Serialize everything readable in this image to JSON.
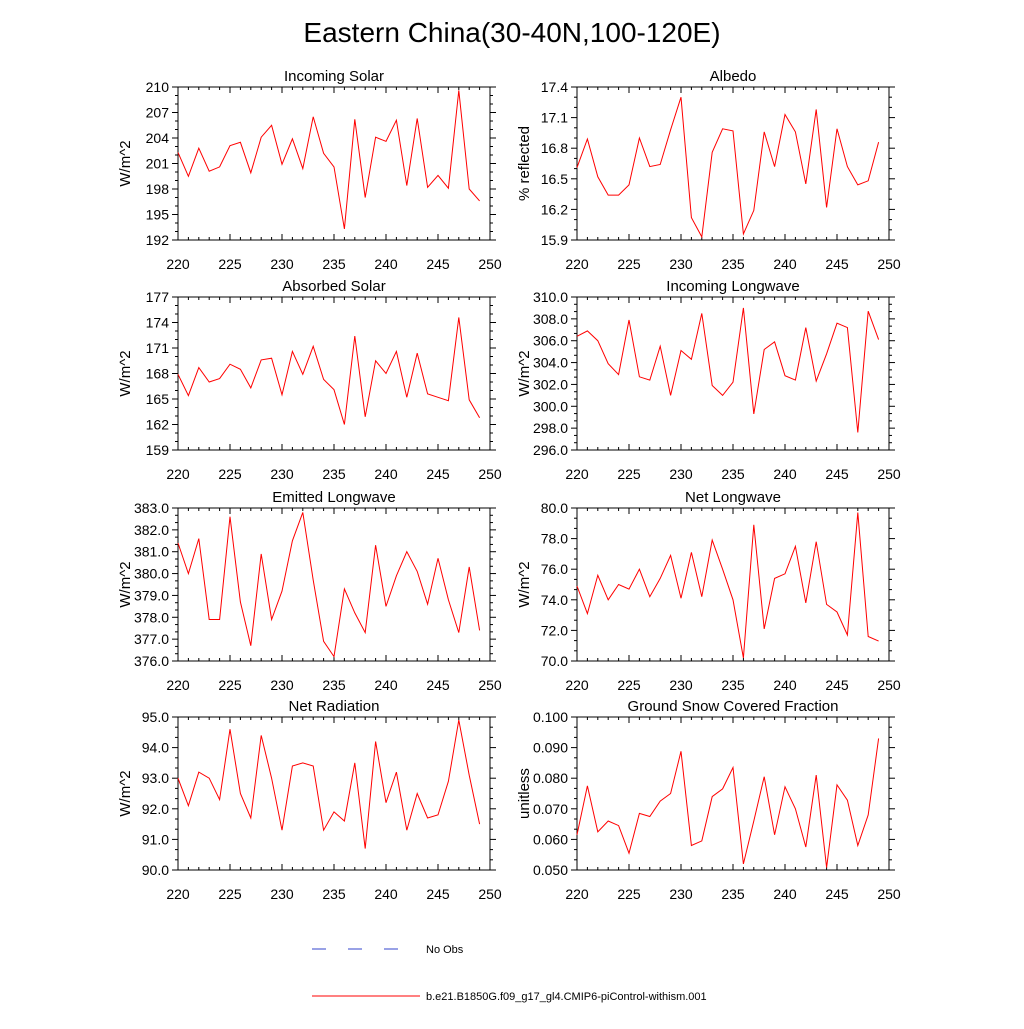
{
  "title": "Eastern China(30-40N,100-120E)",
  "legend": {
    "obs_label": "No Obs",
    "obs_color": "#3344cc",
    "model_label": "b.e21.B1850G.f09_g17_gl4.CMIP6-piControl-withism.001",
    "model_color": "#ff0000"
  },
  "chart_data": [
    {
      "type": "line",
      "title": "Incoming Solar",
      "ylabel": "W/m^2",
      "xlim": [
        220,
        250
      ],
      "ylim": [
        192,
        210
      ],
      "xticks": [
        220,
        225,
        230,
        235,
        240,
        245,
        250
      ],
      "yticks": [
        "192",
        "195",
        "198",
        "201",
        "204",
        "207",
        "210"
      ],
      "x": [
        220,
        221,
        222,
        223,
        224,
        225,
        226,
        227,
        228,
        229,
        230,
        231,
        232,
        233,
        234,
        235,
        236,
        237,
        238,
        239,
        240,
        241,
        242,
        243,
        244,
        245,
        246,
        247,
        248,
        249
      ],
      "series": [
        {
          "color": "#ff0000",
          "values": [
            202.3,
            199.5,
            202.8,
            200.1,
            200.6,
            203.1,
            203.5,
            199.9,
            204.1,
            205.5,
            200.9,
            203.9,
            200.4,
            206.5,
            202.2,
            200.6,
            193.3,
            206.2,
            197.0,
            204.1,
            203.6,
            206.1,
            198.4,
            206.3,
            198.2,
            199.6,
            198.1,
            209.6,
            198.0,
            196.6
          ]
        }
      ]
    },
    {
      "type": "line",
      "title": "Albedo",
      "ylabel": "% reflected",
      "xlim": [
        220,
        250
      ],
      "ylim": [
        15.9,
        17.4
      ],
      "xticks": [
        220,
        225,
        230,
        235,
        240,
        245,
        250
      ],
      "yticks": [
        "15.9",
        "16.2",
        "16.5",
        "16.8",
        "17.1",
        "17.4"
      ],
      "x": [
        220,
        221,
        222,
        223,
        224,
        225,
        226,
        227,
        228,
        229,
        230,
        231,
        232,
        233,
        234,
        235,
        236,
        237,
        238,
        239,
        240,
        241,
        242,
        243,
        244,
        245,
        246,
        247,
        248,
        249
      ],
      "series": [
        {
          "color": "#ff0000",
          "values": [
            16.61,
            16.89,
            16.52,
            16.34,
            16.34,
            16.44,
            16.9,
            16.62,
            16.64,
            16.98,
            17.3,
            16.12,
            15.93,
            16.76,
            16.99,
            16.97,
            15.96,
            16.19,
            16.96,
            16.62,
            17.13,
            16.96,
            16.45,
            17.18,
            16.22,
            16.99,
            16.62,
            16.44,
            16.48,
            16.86
          ]
        }
      ]
    },
    {
      "type": "line",
      "title": "Absorbed Solar",
      "ylabel": "W/m^2",
      "xlim": [
        220,
        250
      ],
      "ylim": [
        159,
        177
      ],
      "xticks": [
        220,
        225,
        230,
        235,
        240,
        245,
        250
      ],
      "yticks": [
        "159",
        "162",
        "165",
        "168",
        "171",
        "174",
        "177"
      ],
      "x": [
        220,
        221,
        222,
        223,
        224,
        225,
        226,
        227,
        228,
        229,
        230,
        231,
        232,
        233,
        234,
        235,
        236,
        237,
        238,
        239,
        240,
        241,
        242,
        243,
        244,
        245,
        246,
        247,
        248,
        249
      ],
      "series": [
        {
          "color": "#ff0000",
          "values": [
            167.9,
            165.4,
            168.7,
            167.0,
            167.4,
            169.1,
            168.5,
            166.3,
            169.6,
            169.8,
            165.5,
            170.6,
            167.9,
            171.2,
            167.3,
            166.1,
            162.0,
            172.4,
            162.9,
            169.5,
            168.0,
            170.6,
            165.2,
            170.4,
            165.6,
            165.2,
            164.8,
            174.6,
            164.9,
            162.8
          ]
        }
      ]
    },
    {
      "type": "line",
      "title": "Incoming Longwave",
      "ylabel": "W/m^2",
      "xlim": [
        220,
        250
      ],
      "ylim": [
        296.0,
        310.0
      ],
      "xticks": [
        220,
        225,
        230,
        235,
        240,
        245,
        250
      ],
      "yticks": [
        "296.0",
        "298.0",
        "300.0",
        "302.0",
        "304.0",
        "306.0",
        "308.0",
        "310.0"
      ],
      "x": [
        220,
        221,
        222,
        223,
        224,
        225,
        226,
        227,
        228,
        229,
        230,
        231,
        232,
        233,
        234,
        235,
        236,
        237,
        238,
        239,
        240,
        241,
        242,
        243,
        244,
        245,
        246,
        247,
        248,
        249
      ],
      "series": [
        {
          "color": "#ff0000",
          "values": [
            306.4,
            306.9,
            306.0,
            303.9,
            302.9,
            307.9,
            302.7,
            302.4,
            305.5,
            301.0,
            305.1,
            304.3,
            308.5,
            301.9,
            301.0,
            302.2,
            309.0,
            299.3,
            305.2,
            305.9,
            302.8,
            302.4,
            307.2,
            302.3,
            304.8,
            307.6,
            307.2,
            297.6,
            308.7,
            306.1
          ]
        }
      ]
    },
    {
      "type": "line",
      "title": "Emitted Longwave",
      "ylabel": "W/m^2",
      "xlim": [
        220,
        250
      ],
      "ylim": [
        376.0,
        383.0
      ],
      "xticks": [
        220,
        225,
        230,
        235,
        240,
        245,
        250
      ],
      "yticks": [
        "376.0",
        "377.0",
        "378.0",
        "379.0",
        "380.0",
        "381.0",
        "382.0",
        "383.0"
      ],
      "x": [
        220,
        221,
        222,
        223,
        224,
        225,
        226,
        227,
        228,
        229,
        230,
        231,
        232,
        233,
        234,
        235,
        236,
        237,
        238,
        239,
        240,
        241,
        242,
        243,
        244,
        245,
        246,
        247,
        248,
        249
      ],
      "series": [
        {
          "color": "#ff0000",
          "values": [
            381.4,
            380.0,
            381.6,
            377.9,
            377.9,
            382.6,
            378.7,
            376.7,
            380.9,
            377.9,
            379.2,
            381.5,
            382.8,
            379.7,
            376.9,
            376.2,
            379.3,
            378.2,
            377.3,
            381.3,
            378.5,
            379.9,
            381.0,
            380.1,
            378.6,
            380.7,
            378.8,
            377.3,
            380.3,
            377.4
          ]
        }
      ]
    },
    {
      "type": "line",
      "title": "Net Longwave",
      "ylabel": "W/m^2",
      "xlim": [
        220,
        250
      ],
      "ylim": [
        70.0,
        80.0
      ],
      "xticks": [
        220,
        225,
        230,
        235,
        240,
        245,
        250
      ],
      "yticks": [
        "70.0",
        "72.0",
        "74.0",
        "76.0",
        "78.0",
        "80.0"
      ],
      "x": [
        220,
        221,
        222,
        223,
        224,
        225,
        226,
        227,
        228,
        229,
        230,
        231,
        232,
        233,
        234,
        235,
        236,
        237,
        238,
        239,
        240,
        241,
        242,
        243,
        244,
        245,
        246,
        247,
        248,
        249
      ],
      "series": [
        {
          "color": "#ff0000",
          "values": [
            74.9,
            73.1,
            75.6,
            74.0,
            75.0,
            74.7,
            76.0,
            74.2,
            75.4,
            76.9,
            74.1,
            77.1,
            74.2,
            77.9,
            76.0,
            74.0,
            70.2,
            78.9,
            72.1,
            75.4,
            75.7,
            77.5,
            73.8,
            77.8,
            73.7,
            73.2,
            71.7,
            79.7,
            71.6,
            71.3
          ]
        }
      ]
    },
    {
      "type": "line",
      "title": "Net Radiation",
      "ylabel": "W/m^2",
      "xlim": [
        220,
        250
      ],
      "ylim": [
        90.0,
        95.0
      ],
      "xticks": [
        220,
        225,
        230,
        235,
        240,
        245,
        250
      ],
      "yticks": [
        "90.0",
        "91.0",
        "92.0",
        "93.0",
        "94.0",
        "95.0"
      ],
      "x": [
        220,
        221,
        222,
        223,
        224,
        225,
        226,
        227,
        228,
        229,
        230,
        231,
        232,
        233,
        234,
        235,
        236,
        237,
        238,
        239,
        240,
        241,
        242,
        243,
        244,
        245,
        246,
        247,
        248,
        249
      ],
      "series": [
        {
          "color": "#ff0000",
          "values": [
            93.0,
            92.1,
            93.2,
            93.0,
            92.3,
            94.6,
            92.5,
            91.7,
            94.4,
            93.0,
            91.3,
            93.4,
            93.5,
            93.4,
            91.3,
            91.9,
            91.6,
            93.5,
            90.7,
            94.2,
            92.2,
            93.2,
            91.3,
            92.5,
            91.7,
            91.8,
            92.9,
            94.9,
            93.1,
            91.5
          ]
        }
      ]
    },
    {
      "type": "line",
      "title": "Ground Snow Covered Fraction",
      "ylabel": "unitless",
      "xlim": [
        220,
        250
      ],
      "ylim": [
        0.05,
        0.1
      ],
      "xticks": [
        220,
        225,
        230,
        235,
        240,
        245,
        250
      ],
      "yticks": [
        "0.050",
        "0.060",
        "0.070",
        "0.080",
        "0.090",
        "0.100"
      ],
      "x": [
        220,
        221,
        222,
        223,
        224,
        225,
        226,
        227,
        228,
        229,
        230,
        231,
        232,
        233,
        234,
        235,
        236,
        237,
        238,
        239,
        240,
        241,
        242,
        243,
        244,
        245,
        246,
        247,
        248,
        249
      ],
      "series": [
        {
          "color": "#ff0000",
          "values": [
            0.0615,
            0.0775,
            0.0625,
            0.066,
            0.0645,
            0.0555,
            0.0685,
            0.0675,
            0.0725,
            0.075,
            0.0888,
            0.058,
            0.0595,
            0.074,
            0.0765,
            0.0835,
            0.052,
            0.066,
            0.0805,
            0.0615,
            0.0772,
            0.07,
            0.0575,
            0.081,
            0.0508,
            0.0778,
            0.0728,
            0.058,
            0.068,
            0.093
          ]
        }
      ]
    }
  ]
}
